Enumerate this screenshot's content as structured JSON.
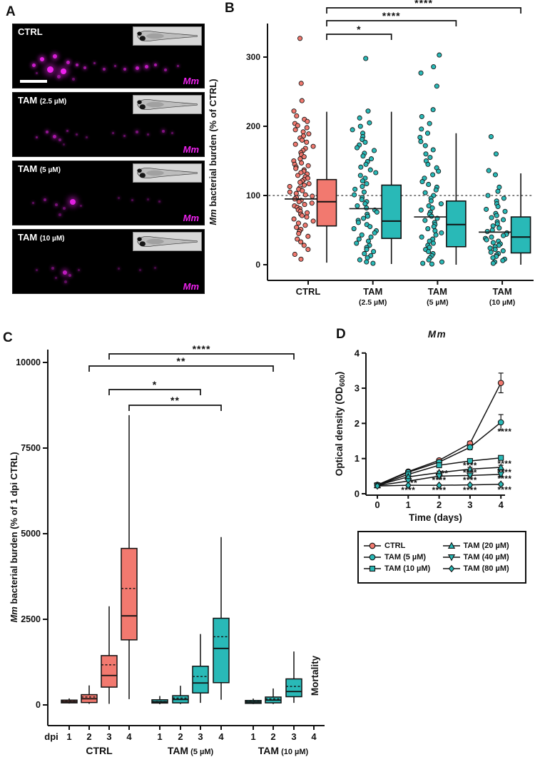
{
  "panels": {
    "a": "A",
    "b": "B",
    "c": "C",
    "d": "D"
  },
  "colors": {
    "ctrl": "#F2796F",
    "tam": "#29B9B7",
    "magenta": "#EE22EE",
    "stroke": "#1a1a1a"
  },
  "panel_a": {
    "marker_label": "Mm",
    "images": [
      {
        "label": "CTRL",
        "sub": "",
        "scale_bar": true,
        "dots": [
          [
            10,
            62,
            5,
            0.85
          ],
          [
            14,
            52,
            6,
            0.95
          ],
          [
            18,
            66,
            9,
            1
          ],
          [
            21,
            47,
            6,
            0.9
          ],
          [
            25,
            70,
            8,
            1
          ],
          [
            28,
            57,
            5,
            0.8
          ],
          [
            33,
            62,
            4,
            0.7
          ],
          [
            37,
            66,
            4,
            0.65
          ],
          [
            42,
            60,
            3,
            0.5
          ],
          [
            47,
            68,
            4,
            0.6
          ],
          [
            53,
            64,
            3,
            0.5
          ],
          [
            58,
            68,
            4,
            0.65
          ],
          [
            64,
            66,
            5,
            0.8
          ],
          [
            69,
            64,
            5,
            0.8
          ],
          [
            74,
            62,
            4,
            0.7
          ],
          [
            79,
            70,
            4,
            0.6
          ],
          [
            86,
            64,
            3,
            0.5
          ],
          [
            23,
            80,
            5,
            0.6
          ],
          [
            31,
            84,
            4,
            0.45
          ],
          [
            12,
            75,
            3,
            0.4
          ]
        ]
      },
      {
        "label": "TAM",
        "sub": "(2.5 µM)",
        "scale_bar": false,
        "dots": [
          [
            12,
            68,
            3,
            0.5
          ],
          [
            17,
            60,
            4,
            0.6
          ],
          [
            21,
            66,
            5,
            0.7
          ],
          [
            24,
            72,
            4,
            0.5
          ],
          [
            28,
            58,
            3,
            0.45
          ],
          [
            33,
            64,
            3,
            0.4
          ],
          [
            38,
            68,
            3,
            0.35
          ],
          [
            52,
            62,
            3,
            0.4
          ],
          [
            58,
            66,
            3,
            0.45
          ],
          [
            64,
            60,
            4,
            0.5
          ],
          [
            70,
            64,
            3,
            0.4
          ],
          [
            78,
            58,
            4,
            0.55
          ],
          [
            83,
            62,
            3,
            0.4
          ],
          [
            26,
            80,
            3,
            0.3
          ]
        ]
      },
      {
        "label": "TAM",
        "sub": "(5 µM)",
        "scale_bar": false,
        "dots": [
          [
            10,
            64,
            3,
            0.4
          ],
          [
            16,
            58,
            4,
            0.5
          ],
          [
            22,
            66,
            4,
            0.5
          ],
          [
            26,
            72,
            4,
            0.45
          ],
          [
            30,
            60,
            8,
            0.95
          ],
          [
            35,
            68,
            3,
            0.35
          ],
          [
            55,
            56,
            3,
            0.3
          ],
          [
            62,
            60,
            3,
            0.35
          ],
          [
            70,
            58,
            3,
            0.3
          ],
          [
            76,
            62,
            3,
            0.35
          ],
          [
            24,
            82,
            4,
            0.4
          ]
        ]
      },
      {
        "label": "TAM",
        "sub": "(10 µM)",
        "scale_bar": false,
        "dots": [
          [
            12,
            62,
            3,
            0.35
          ],
          [
            20,
            58,
            4,
            0.45
          ],
          [
            26,
            64,
            6,
            0.8
          ],
          [
            29,
            70,
            4,
            0.5
          ],
          [
            34,
            62,
            3,
            0.35
          ],
          [
            55,
            60,
            3,
            0.3
          ],
          [
            66,
            62,
            3,
            0.3
          ],
          [
            74,
            58,
            3,
            0.3
          ],
          [
            27,
            80,
            4,
            0.4
          ],
          [
            22,
            74,
            3,
            0.35
          ]
        ]
      }
    ]
  },
  "chart_data": [
    {
      "id": "B",
      "type": "scatter",
      "ylabel_italic": "Mm",
      "ylabel_rest": " bacterial burden (% of CTRL)",
      "yticks": [
        0,
        100,
        200,
        300
      ],
      "ylim": [
        0,
        340
      ],
      "reference_line": 100,
      "groups": [
        {
          "label": "CTRL",
          "sub": "",
          "color": "ctrl",
          "mean": 95,
          "box": {
            "lo": 3,
            "q1": 56,
            "median": 91,
            "q3": 123,
            "hi": 221
          },
          "points": [
            327,
            262,
            237,
            222,
            215,
            210,
            207,
            204,
            201,
            198,
            195,
            192,
            189,
            186,
            183,
            180,
            177,
            174,
            171,
            168,
            165,
            162,
            159,
            156,
            153,
            150,
            147,
            145,
            143,
            141,
            139,
            137,
            135,
            133,
            131,
            129,
            127,
            125,
            123,
            121,
            119,
            117,
            115,
            113,
            111,
            109,
            107,
            105,
            103,
            101,
            99,
            97,
            95,
            93,
            91,
            89,
            87,
            85,
            83,
            81,
            79,
            77,
            75,
            73,
            71,
            69,
            66,
            63,
            60,
            57,
            54,
            51,
            48,
            45,
            41,
            37,
            33,
            28,
            22,
            15,
            8
          ]
        },
        {
          "label": "TAM",
          "sub": "(2.5 µM)",
          "color": "tam",
          "mean": 81,
          "box": {
            "lo": 1,
            "q1": 38,
            "median": 63,
            "q3": 115,
            "hi": 221
          },
          "points": [
            298,
            222,
            212,
            205,
            200,
            195,
            190,
            185,
            181,
            177,
            173,
            169,
            165,
            161,
            157,
            153,
            149,
            145,
            141,
            137,
            133,
            129,
            125,
            121,
            117,
            113,
            109,
            105,
            101,
            97,
            94,
            91,
            88,
            85,
            82,
            79,
            76,
            73,
            70,
            67,
            64,
            61,
            58,
            55,
            52,
            49,
            46,
            43,
            40,
            37,
            34,
            31,
            28,
            25,
            22,
            19,
            16,
            13,
            10,
            7,
            4,
            2
          ]
        },
        {
          "label": "TAM",
          "sub": "(5 µM)",
          "color": "tam",
          "mean": 69,
          "box": {
            "lo": 0,
            "q1": 26,
            "median": 58,
            "q3": 92,
            "hi": 190
          },
          "points": [
            303,
            286,
            277,
            258,
            224,
            214,
            204,
            196,
            190,
            184,
            178,
            172,
            166,
            160,
            155,
            150,
            145,
            140,
            135,
            130,
            125,
            120,
            116,
            112,
            108,
            104,
            100,
            96,
            92,
            88,
            85,
            82,
            79,
            76,
            73,
            70,
            67,
            64,
            61,
            58,
            55,
            52,
            49,
            46,
            43,
            40,
            37,
            34,
            31,
            28,
            25,
            22,
            19,
            16,
            13,
            10,
            7,
            4,
            2,
            1
          ]
        },
        {
          "label": "TAM",
          "sub": "(10 µM)",
          "color": "tam",
          "mean": 47,
          "box": {
            "lo": 0,
            "q1": 17,
            "median": 40,
            "q3": 69,
            "hi": 132
          },
          "points": [
            185,
            160,
            136,
            130,
            112,
            106,
            100,
            96,
            92,
            88,
            84,
            80,
            77,
            74,
            71,
            68,
            65,
            62,
            59,
            56,
            53,
            50,
            48,
            46,
            44,
            42,
            40,
            38,
            36,
            34,
            32,
            30,
            28,
            26,
            24,
            22,
            20,
            18,
            16,
            14,
            12,
            10,
            8,
            6,
            4,
            2
          ]
        }
      ],
      "brackets": [
        {
          "from": 0,
          "to": 1,
          "label": "*",
          "y": 48
        },
        {
          "from": 0,
          "to": 2,
          "label": "****",
          "y": 29
        },
        {
          "from": 0,
          "to": 3,
          "label": "****",
          "y": 11
        }
      ]
    },
    {
      "id": "C",
      "type": "box",
      "ylabel_italic": "Mm",
      "ylabel_rest": " bacterial burden (% of 1 dpi CTRL)",
      "yticks": [
        0,
        2500,
        5000,
        7500,
        10000
      ],
      "ylim": [
        0,
        10400
      ],
      "x_prefix": "dpi",
      "dpi_labels": [
        "1",
        "2",
        "3",
        "4"
      ],
      "mortality_label": "Mortality",
      "groups": [
        {
          "label": "CTRL",
          "sub": "",
          "color": "ctrl",
          "boxes": [
            {
              "lo": 40,
              "q1": 60,
              "median": 95,
              "mean": 105,
              "q3": 140,
              "hi": 190
            },
            {
              "lo": 30,
              "q1": 70,
              "median": 180,
              "mean": 230,
              "q3": 300,
              "hi": 570
            },
            {
              "lo": 30,
              "q1": 520,
              "median": 860,
              "mean": 1170,
              "q3": 1440,
              "hi": 2880
            },
            {
              "lo": 170,
              "q1": 1900,
              "median": 2600,
              "mean": 3400,
              "q3": 4570,
              "hi": 8460
            }
          ]
        },
        {
          "label": "TAM",
          "sub": "(5 µM)",
          "color": "tam",
          "boxes": [
            {
              "lo": 20,
              "q1": 55,
              "median": 90,
              "mean": 100,
              "q3": 150,
              "hi": 260
            },
            {
              "lo": 25,
              "q1": 60,
              "median": 160,
              "mean": 200,
              "q3": 270,
              "hi": 560
            },
            {
              "lo": 60,
              "q1": 350,
              "median": 640,
              "mean": 830,
              "q3": 1130,
              "hi": 2070
            },
            {
              "lo": 150,
              "q1": 650,
              "median": 1650,
              "mean": 1990,
              "q3": 2530,
              "hi": 4900
            }
          ]
        },
        {
          "label": "TAM",
          "sub": "(10 µM)",
          "color": "tam",
          "boxes": [
            {
              "lo": 25,
              "q1": 45,
              "median": 85,
              "mean": 95,
              "q3": 130,
              "hi": 185
            },
            {
              "lo": 25,
              "q1": 60,
              "median": 140,
              "mean": 175,
              "q3": 230,
              "hi": 480
            },
            {
              "lo": 60,
              "q1": 240,
              "median": 390,
              "mean": 540,
              "q3": 760,
              "hi": 1560
            },
            null
          ]
        }
      ],
      "brackets": [
        {
          "g1": 0,
          "d1": 2,
          "g2": 2,
          "d2": 2,
          "label": "**",
          "y": 513
        },
        {
          "g1": 0,
          "d1": 2,
          "g2": 2,
          "d2": 2,
          "label": "****",
          "y": 496,
          "wide": true
        },
        {
          "g1": 0,
          "d1": 2,
          "g2": 1,
          "d2": 2,
          "label": "*",
          "y": 546
        },
        {
          "g1": 0,
          "d1": 3,
          "g2": 1,
          "d2": 3,
          "label": "**",
          "y": 568
        }
      ]
    },
    {
      "id": "D",
      "type": "line",
      "title": "Mm",
      "xlabel": "Time (days)",
      "ylabel_prefix": "Optical density (OD",
      "ylabel_sub": "600",
      "ylabel_suffix": ")",
      "x": [
        0,
        1,
        2,
        3,
        4
      ],
      "yticks": [
        0,
        1,
        2,
        3,
        4
      ],
      "xlim": [
        0,
        4
      ],
      "ylim": [
        0,
        4
      ],
      "series": [
        {
          "name": "CTRL",
          "marker": "circle",
          "color": "ctrl",
          "values": [
            0.25,
            0.63,
            0.95,
            1.43,
            3.15
          ],
          "err": [
            0,
            0,
            0.04,
            0.06,
            0.28
          ]
        },
        {
          "name": "TAM (5 µM)",
          "marker": "circle",
          "color": "tam",
          "values": [
            0.25,
            0.61,
            0.9,
            1.32,
            2.03
          ],
          "err": [
            0,
            0,
            0.04,
            0.07,
            0.22
          ]
        },
        {
          "name": "TAM (10 µM)",
          "marker": "square",
          "color": "tam",
          "values": [
            0.24,
            0.55,
            0.81,
            0.93,
            1.02
          ],
          "err": [
            0,
            0,
            0.04,
            0.05,
            0.06
          ]
        },
        {
          "name": "TAM (20 µM)",
          "marker": "triangle-up",
          "color": "tam",
          "values": [
            0.24,
            0.48,
            0.6,
            0.7,
            0.75
          ],
          "err": [
            0,
            0,
            0.04,
            0.05,
            0.06
          ]
        },
        {
          "name": "TAM (40 µM)",
          "marker": "triangle-down",
          "color": "tam",
          "values": [
            0.23,
            0.36,
            0.5,
            0.52,
            0.55
          ],
          "err": [
            0,
            0,
            0.03,
            0.04,
            0.05
          ]
        },
        {
          "name": "TAM (80 µM)",
          "marker": "diamond",
          "color": "tam",
          "values": [
            0.22,
            0.24,
            0.24,
            0.25,
            0.27
          ],
          "err": [
            0,
            0.02,
            0.02,
            0.02,
            0.03
          ]
        }
      ],
      "annotations": [
        {
          "x": 1.18,
          "y": 0.3,
          "t": "**"
        },
        {
          "x": 1,
          "y": 0.1,
          "t": "****"
        },
        {
          "x": 2.18,
          "y": 0.58,
          "t": "**"
        },
        {
          "x": 2,
          "y": 0.39,
          "t": "****"
        },
        {
          "x": 2,
          "y": 0.1,
          "t": "****"
        },
        {
          "x": 3,
          "y": 0.8,
          "t": "****"
        },
        {
          "x": 3,
          "y": 0.6,
          "t": "****"
        },
        {
          "x": 3,
          "y": 0.39,
          "t": "****"
        },
        {
          "x": 3,
          "y": 0.1,
          "t": "****"
        },
        {
          "x": 4.12,
          "y": 1.76,
          "t": "****"
        },
        {
          "x": 4.12,
          "y": 0.85,
          "t": "****"
        },
        {
          "x": 4.12,
          "y": 0.61,
          "t": "****"
        },
        {
          "x": 4.12,
          "y": 0.43,
          "t": "****"
        },
        {
          "x": 4.12,
          "y": 0.11,
          "t": "****"
        }
      ]
    }
  ],
  "legend": {
    "items": [
      {
        "label": "CTRL",
        "marker": "circle",
        "color": "ctrl"
      },
      {
        "label": "TAM (20 µM)",
        "marker": "triangle-up",
        "color": "tam"
      },
      {
        "label": "TAM (5 µM)",
        "marker": "circle",
        "color": "tam"
      },
      {
        "label": "TAM (40 µM)",
        "marker": "triangle-down",
        "color": "tam"
      },
      {
        "label": "TAM (10 µM)",
        "marker": "square",
        "color": "tam"
      },
      {
        "label": "TAM (80 µM)",
        "marker": "diamond",
        "color": "tam"
      }
    ]
  }
}
